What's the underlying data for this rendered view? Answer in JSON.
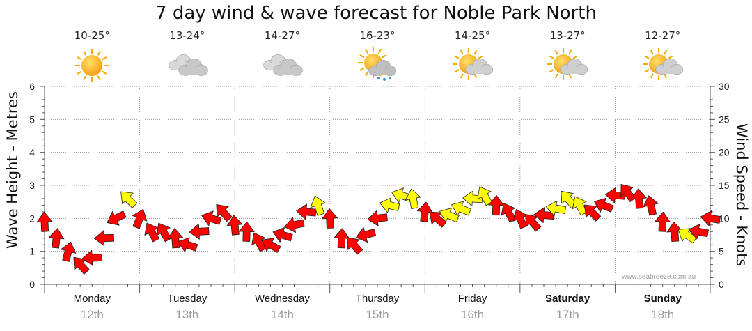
{
  "page_title": "7 day wind & wave forecast for Noble Park North",
  "watermark": "www.seabreeze.com.au",
  "forecast_days": [
    {
      "temp": "10-25°",
      "icon": "sunny-icon",
      "day": "Monday",
      "date": "12th",
      "bold": false
    },
    {
      "temp": "13-24°",
      "icon": "cloudy-icon",
      "day": "Tuesday",
      "date": "13th",
      "bold": false
    },
    {
      "temp": "14-27°",
      "icon": "cloudy-icon",
      "day": "Wednesday",
      "date": "14th",
      "bold": false
    },
    {
      "temp": "16-23°",
      "icon": "sun-cloud-rain-icon",
      "day": "Thursday",
      "date": "15th",
      "bold": false
    },
    {
      "temp": "14-25°",
      "icon": "partly-cloudy-icon",
      "day": "Friday",
      "date": "16th",
      "bold": false
    },
    {
      "temp": "13-27°",
      "icon": "partly-cloudy-icon",
      "day": "Saturday",
      "date": "17th",
      "bold": true
    },
    {
      "temp": "12-27°",
      "icon": "partly-cloudy-icon",
      "day": "Sunday",
      "date": "18th",
      "bold": true
    }
  ],
  "colors": {
    "strong_wind": "#ff0000",
    "moderate_wind": "#ffff00",
    "axis": "#555555",
    "grid": "#999999"
  },
  "chart_data": {
    "type": "line",
    "ylabel_left": "Wave Height - Metres",
    "ylabel_right": "Wind Speed - Knots",
    "ylim_left": [
      0,
      6
    ],
    "ylim_right": [
      0,
      30
    ],
    "yticks_left": [
      "0",
      "1",
      "2",
      "3",
      "4",
      "5",
      "6"
    ],
    "yticks_right": [
      "0",
      "5",
      "10",
      "15",
      "20",
      "25",
      "30"
    ],
    "grid": true,
    "categories": [
      "Monday",
      "Tuesday",
      "Wednesday",
      "Thursday",
      "Friday",
      "Saturday",
      "Sunday"
    ],
    "wind_series": {
      "name": "Wind Speed - Knots",
      "hours": [
        0,
        3,
        6,
        9,
        12,
        15,
        18,
        21,
        24,
        27,
        30,
        33,
        36,
        39,
        42,
        45,
        48,
        51,
        54,
        57,
        60,
        63,
        66,
        69,
        72,
        75,
        78,
        81,
        84,
        87,
        90,
        93,
        96,
        99,
        102,
        105,
        108,
        111,
        114,
        117,
        120,
        123,
        126,
        129,
        132,
        135,
        138,
        141,
        144,
        147,
        150,
        153,
        156,
        159,
        162,
        165,
        168
      ],
      "knots": [
        9.5,
        7,
        5,
        3,
        4,
        7,
        10,
        13,
        10,
        8,
        8,
        7,
        6,
        8,
        10,
        11,
        9,
        8,
        6.5,
        6,
        7.5,
        9,
        11,
        12,
        10,
        7,
        6,
        7.5,
        10,
        12,
        13.5,
        13,
        11,
        10,
        10.5,
        11.5,
        13,
        13.5,
        12,
        11,
        10,
        9.5,
        10.5,
        11.5,
        13,
        12,
        11,
        12,
        13.5,
        14,
        13,
        12,
        9.5,
        8,
        7.5,
        8,
        10
      ],
      "strength": [
        "s",
        "s",
        "s",
        "s",
        "s",
        "s",
        "s",
        "m",
        "s",
        "s",
        "s",
        "s",
        "s",
        "s",
        "s",
        "s",
        "s",
        "s",
        "s",
        "s",
        "s",
        "s",
        "s",
        "m",
        "s",
        "s",
        "s",
        "s",
        "s",
        "m",
        "m",
        "m",
        "s",
        "s",
        "m",
        "m",
        "m",
        "m",
        "s",
        "s",
        "s",
        "s",
        "s",
        "m",
        "m",
        "m",
        "s",
        "s",
        "s",
        "s",
        "s",
        "s",
        "s",
        "s",
        "m",
        "s",
        "s"
      ]
    }
  }
}
